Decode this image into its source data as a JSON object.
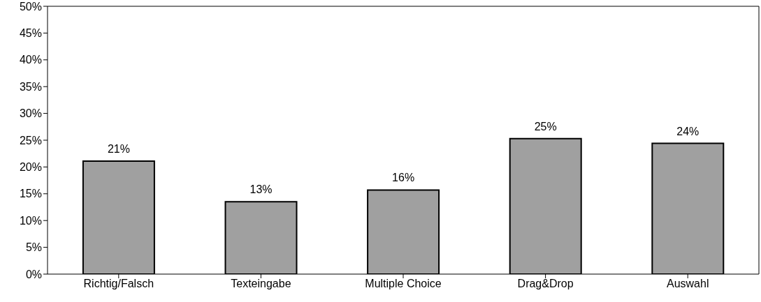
{
  "chart_data": {
    "type": "bar",
    "categories": [
      "Richtig/Falsch",
      "Texteingabe",
      "Multiple Choice",
      "Drag&Drop",
      "Auswahl"
    ],
    "values": [
      21.1,
      13.5,
      15.7,
      25.3,
      24.4
    ],
    "value_labels": [
      "21%",
      "13%",
      "16%",
      "25%",
      "24%"
    ],
    "color": "#a0a0a0",
    "ylim": [
      0,
      50
    ],
    "yticks": [
      {
        "value": 0,
        "label": "0%"
      },
      {
        "value": 5,
        "label": "5%"
      },
      {
        "value": 10,
        "label": "10%"
      },
      {
        "value": 15,
        "label": "15%"
      },
      {
        "value": 20,
        "label": "20%"
      },
      {
        "value": 25,
        "label": "25%"
      },
      {
        "value": 30,
        "label": "30%"
      },
      {
        "value": 35,
        "label": "35%"
      },
      {
        "value": 40,
        "label": "40%"
      },
      {
        "value": 45,
        "label": "45%"
      },
      {
        "value": 50,
        "label": "50%"
      }
    ],
    "grid": false,
    "legend": false
  }
}
